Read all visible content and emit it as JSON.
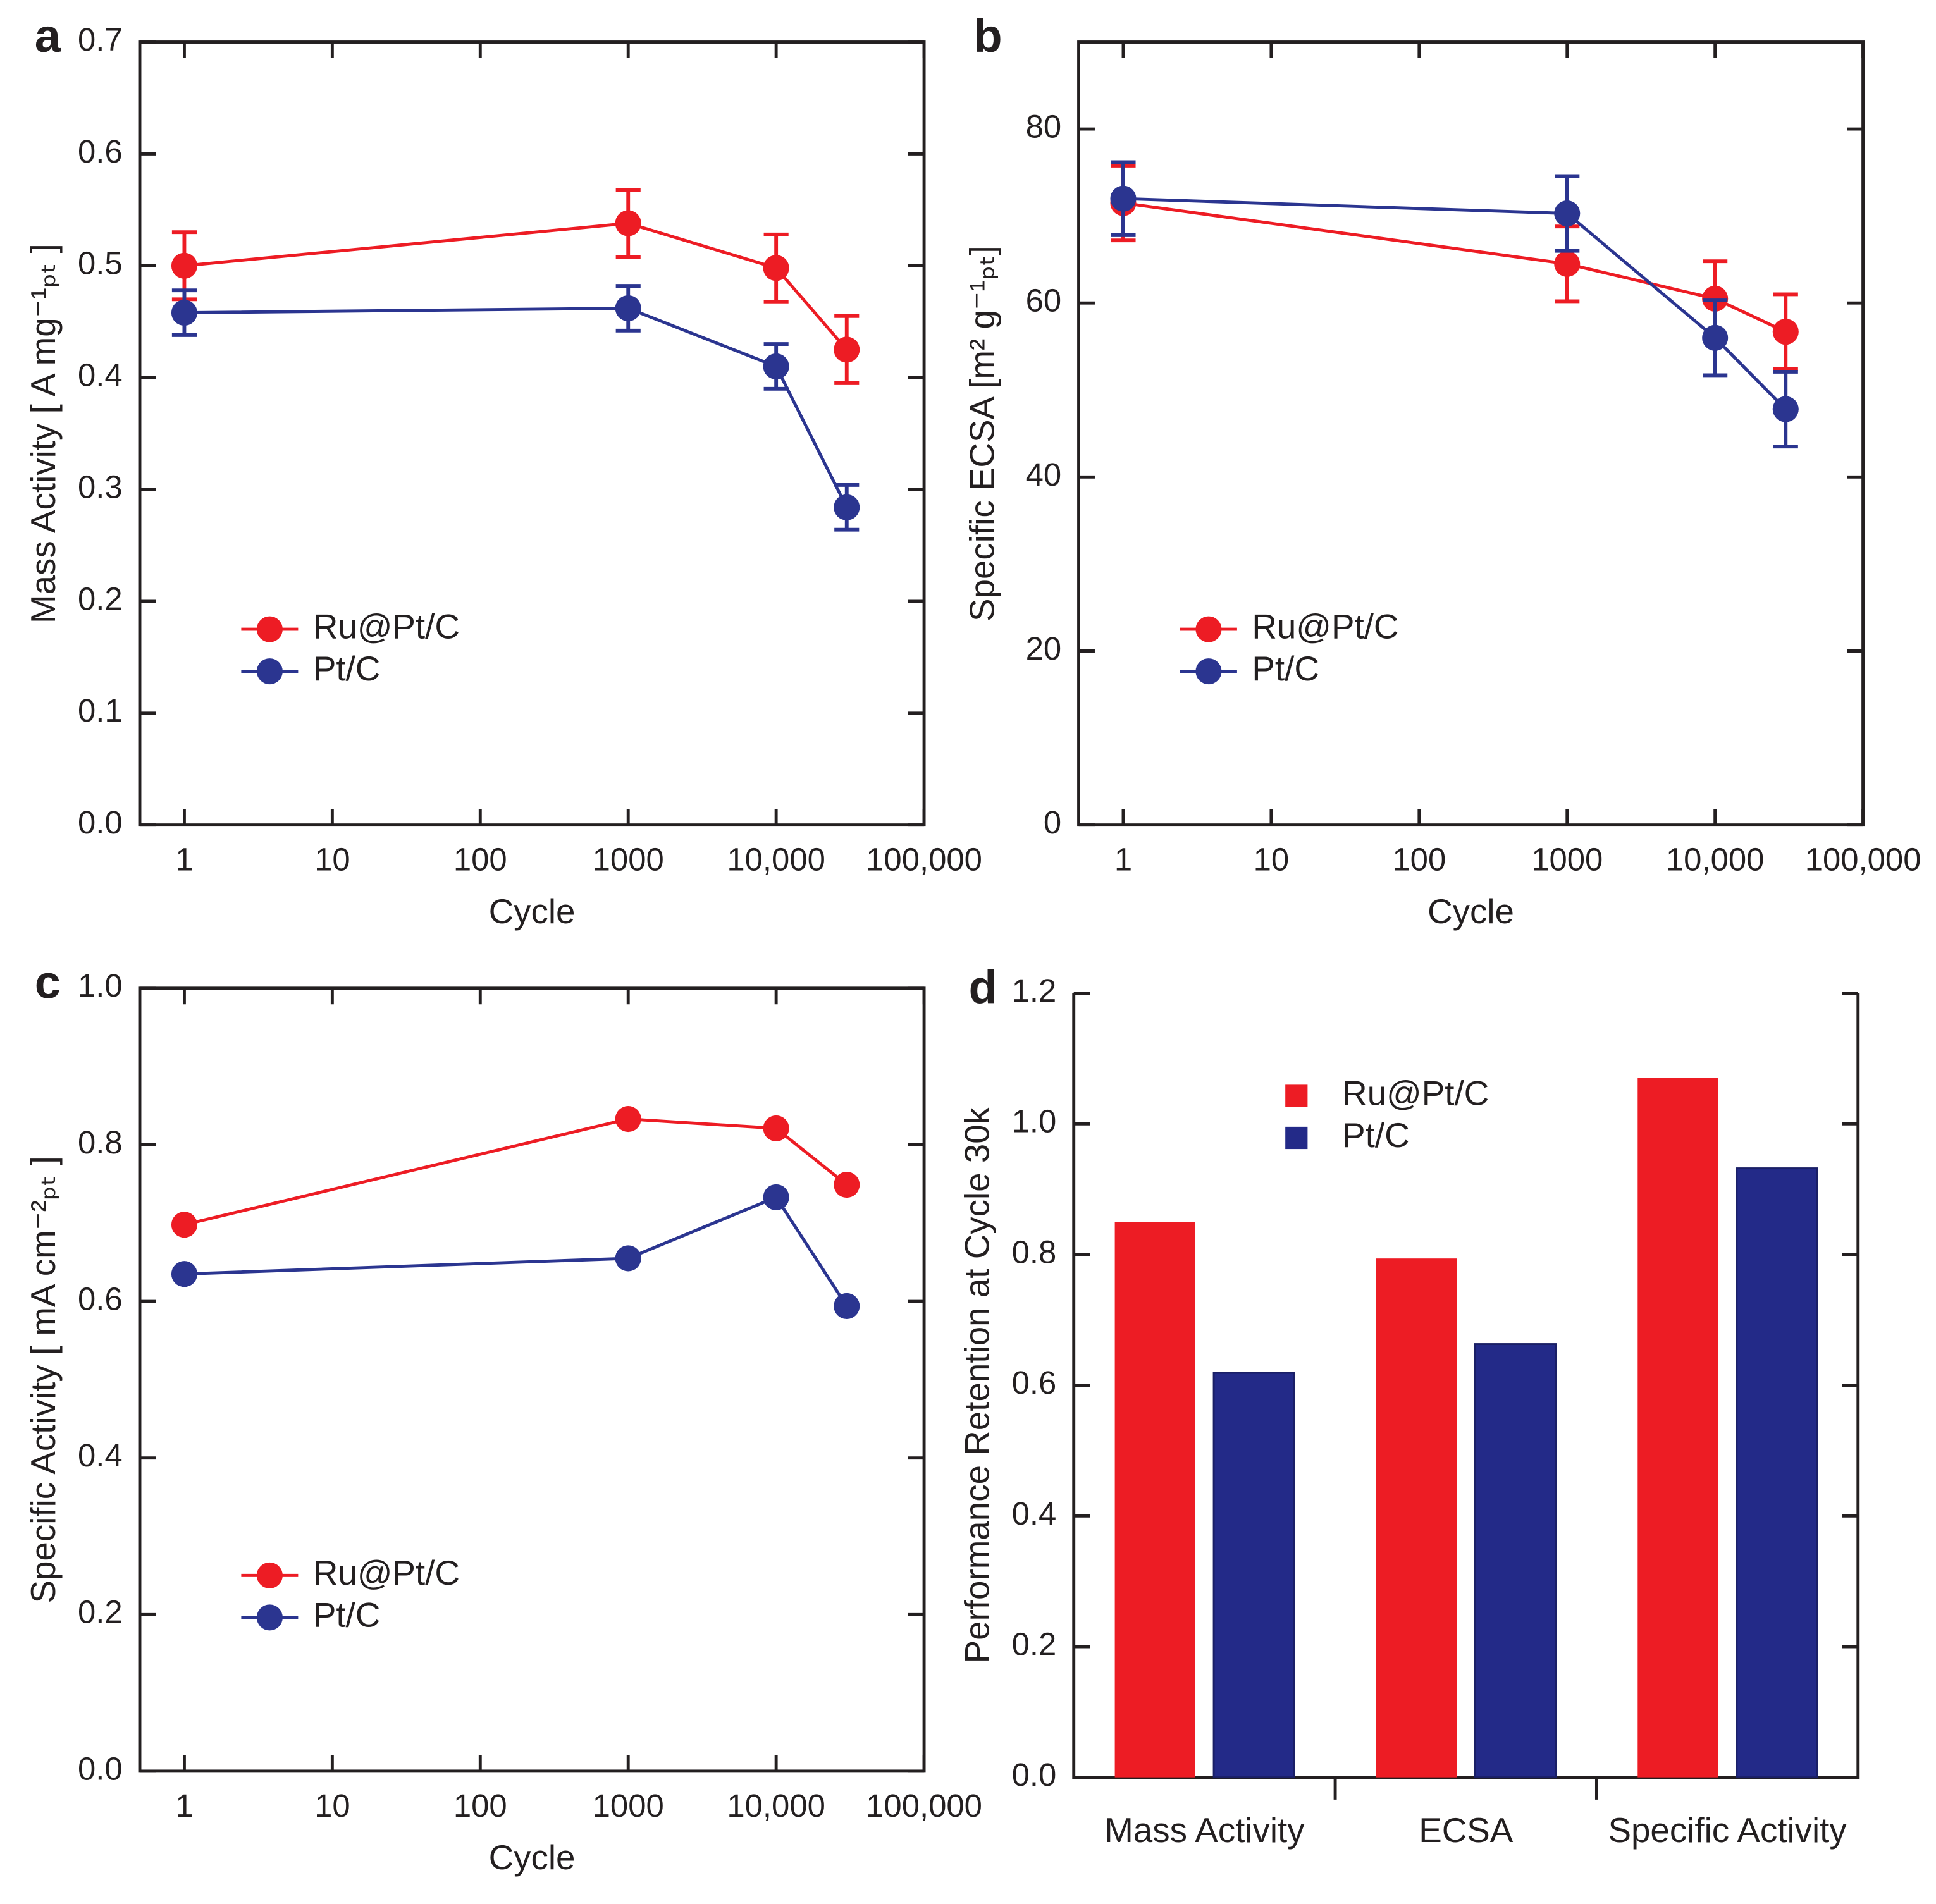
{
  "chart_data": [
    {
      "type": "line",
      "label": "a",
      "xlabel": "Cycle",
      "ylabel": "Mass Activity [ A mg⁻¹ₚₜ ]",
      "x": [
        1,
        1000,
        10000,
        30000
      ],
      "xscale": "log",
      "xlim": [
        0.5,
        100000
      ],
      "xticks": [
        1,
        10,
        100,
        1000,
        {
          "value": 10000,
          "label": "10,000"
        },
        {
          "value": 100000,
          "label": "100,000"
        }
      ],
      "ylim": [
        0,
        0.7
      ],
      "yticks": [
        {
          "value": 0,
          "label": "0.0"
        },
        0.1,
        0.2,
        0.3,
        0.4,
        0.5,
        0.6,
        0.7
      ],
      "legend": "center left",
      "series": [
        {
          "name": "Ru@Pt/C",
          "color": "#ed1c24",
          "values": [
            0.5,
            0.538,
            0.498,
            0.425
          ],
          "errors": [
            0.03,
            0.03,
            0.03,
            0.03
          ]
        },
        {
          "name": "Pt/C",
          "color": "#2b3590",
          "values": [
            0.458,
            0.462,
            0.41,
            0.284
          ],
          "errors": [
            0.02,
            0.02,
            0.02,
            0.02
          ]
        }
      ]
    },
    {
      "type": "line",
      "label": "b",
      "xlabel": "Cycle",
      "ylabel": "Specific ECSA [m² g⁻¹ₚₜ]",
      "x": [
        1,
        1000,
        10000,
        30000
      ],
      "xscale": "log",
      "xlim": [
        0.5,
        100000
      ],
      "xticks": [
        1,
        10,
        100,
        1000,
        {
          "value": 10000,
          "label": "10,000"
        },
        {
          "value": 100000,
          "label": "100,000"
        }
      ],
      "ylim": [
        0,
        90
      ],
      "yticks": [
        0,
        20,
        40,
        60,
        80
      ],
      "legend": "center left",
      "series": [
        {
          "name": "Ru@Pt/C",
          "color": "#ed1c24",
          "values": [
            71.5,
            64.5,
            60.5,
            56.7
          ],
          "errors": [
            4.3,
            4.3,
            4.3,
            4.3
          ]
        },
        {
          "name": "Pt/C",
          "color": "#2b3590",
          "values": [
            72,
            70.3,
            56,
            47.8
          ],
          "errors": [
            4.2,
            4.3,
            4.3,
            4.3
          ]
        }
      ]
    },
    {
      "type": "line",
      "label": "c",
      "xlabel": "Cycle",
      "ylabel": "Specific Activity [ mA cm⁻²ₚₜ ]",
      "x": [
        1,
        1000,
        10000,
        30000
      ],
      "xscale": "log",
      "xlim": [
        0.5,
        100000
      ],
      "xticks": [
        1,
        10,
        100,
        1000,
        {
          "value": 10000,
          "label": "10,000"
        },
        {
          "value": 100000,
          "label": "100,000"
        }
      ],
      "ylim": [
        0,
        1.0
      ],
      "yticks": [
        {
          "value": 0,
          "label": "0.0"
        },
        0.2,
        0.4,
        0.6,
        0.8,
        {
          "value": 1.0,
          "label": "1.0"
        }
      ],
      "legend": "center left",
      "series": [
        {
          "name": "Ru@Pt/C",
          "color": "#ed1c24",
          "values": [
            0.698,
            0.833,
            0.821,
            0.749
          ]
        },
        {
          "name": "Pt/C",
          "color": "#2b3590",
          "values": [
            0.635,
            0.655,
            0.733,
            0.594
          ]
        }
      ]
    },
    {
      "type": "bar",
      "label": "d",
      "ylabel": "Performance Retention at Cycle 30k",
      "categories": [
        "Mass Activity",
        "ECSA",
        "Specific Activity"
      ],
      "ylim": [
        0,
        1.2
      ],
      "yticks": [
        {
          "value": 0,
          "label": "0.0"
        },
        0.2,
        0.4,
        0.6,
        0.8,
        {
          "value": 1.0,
          "label": "1.0"
        },
        1.2
      ],
      "legend": "upper center",
      "series": [
        {
          "name": "Ru@Pt/C",
          "color": "#ed1c24",
          "values": [
            0.85,
            0.794,
            1.07
          ]
        },
        {
          "name": "Pt/C",
          "color": "#232a88",
          "values": [
            0.619,
            0.663,
            0.932
          ]
        }
      ]
    }
  ]
}
